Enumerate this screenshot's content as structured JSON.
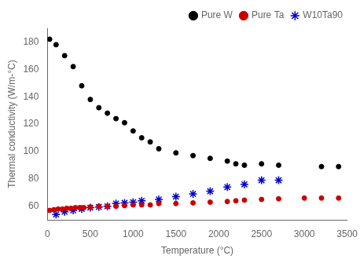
{
  "chart_data": {
    "type": "scatter",
    "xlabel": "Temperature (°C)",
    "ylabel": "Thermal conductivity (W/m-°C)",
    "xlim": [
      0,
      3500
    ],
    "ylim": [
      50,
      190
    ],
    "xticks": [
      0,
      500,
      1000,
      1500,
      2000,
      2500,
      3000,
      3500
    ],
    "yticks": [
      60,
      80,
      100,
      120,
      140,
      160,
      180
    ],
    "grid": false,
    "legend": "upper right",
    "series": [
      {
        "name": "Pure W",
        "color": "#000000",
        "marker": "circle",
        "x": [
          25,
          100,
          200,
          300,
          400,
          500,
          600,
          700,
          800,
          900,
          1000,
          1100,
          1200,
          1300,
          1500,
          1700,
          1900,
          2100,
          2200,
          2300,
          2500,
          2700,
          3200,
          3400
        ],
        "values": [
          182,
          178,
          170,
          162,
          148,
          138,
          132,
          128,
          124,
          121,
          115,
          110,
          107,
          102,
          99,
          97,
          95,
          93,
          91,
          90,
          91,
          90,
          89,
          89
        ]
      },
      {
        "name": "Pure Ta",
        "color": "#cc0000",
        "marker": "circle",
        "x": [
          25,
          75,
          125,
          175,
          225,
          275,
          325,
          375,
          425,
          500,
          600,
          700,
          800,
          900,
          1000,
          1100,
          1200,
          1300,
          1500,
          1700,
          1900,
          2100,
          2200,
          2300,
          2500,
          2700,
          3000,
          3200,
          3400
        ],
        "values": [
          57,
          57.5,
          58,
          58,
          58.5,
          58.5,
          59,
          59,
          59,
          59.5,
          60,
          60,
          60,
          60.5,
          61,
          61,
          61,
          62,
          62,
          62.5,
          63,
          63.5,
          64,
          64.5,
          65,
          65.5,
          66,
          66,
          66
        ]
      },
      {
        "name": "W10Ta90",
        "color": "#0000cc",
        "marker": "star",
        "x": [
          100,
          200,
          300,
          400,
          500,
          600,
          700,
          800,
          900,
          1000,
          1100,
          1300,
          1500,
          1700,
          1900,
          2100,
          2300,
          2500,
          2700
        ],
        "values": [
          54,
          56,
          57,
          58,
          59,
          59.5,
          60,
          62,
          62.5,
          63,
          64,
          65,
          67,
          69,
          71,
          74,
          76,
          79,
          79
        ]
      }
    ]
  }
}
